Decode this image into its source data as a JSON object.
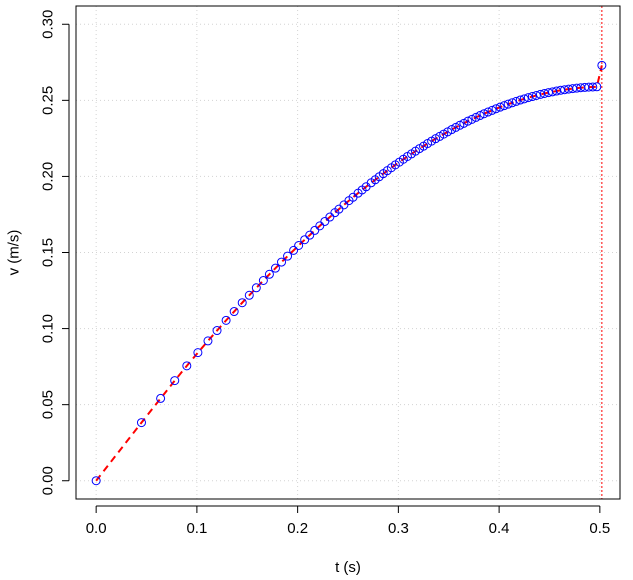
{
  "chart_data": {
    "type": "scatter",
    "xlabel": "t (s)",
    "ylabel": "v (m/s)",
    "xlim": [
      -0.02,
      0.52
    ],
    "ylim": [
      -0.012,
      0.312
    ],
    "x_ticks": [
      0.0,
      0.1,
      0.2,
      0.3,
      0.4,
      0.5
    ],
    "x_tick_labels": [
      "0.0",
      "0.1",
      "0.2",
      "0.3",
      "0.4",
      "0.5"
    ],
    "y_ticks": [
      0.0,
      0.05,
      0.1,
      0.15,
      0.2,
      0.25,
      0.3
    ],
    "y_tick_labels": [
      "0.00",
      "0.05",
      "0.10",
      "0.15",
      "0.20",
      "0.25",
      "0.30"
    ],
    "grid": true,
    "vertical_reference_line_x": 0.502,
    "colors": {
      "points": "#0000ff",
      "fit_line": "#ff0000",
      "reference_line": "#ff0000",
      "grid": "#d3d3d3"
    },
    "series": [
      {
        "marker": "open-circle",
        "x": [
          0.0,
          0.045,
          0.064,
          0.078,
          0.09,
          0.101,
          0.111,
          0.12,
          0.129,
          0.137,
          0.145,
          0.152,
          0.159,
          0.166,
          0.172,
          0.178,
          0.184,
          0.19,
          0.196,
          0.201,
          0.207,
          0.212,
          0.217,
          0.222,
          0.227,
          0.232,
          0.237,
          0.241,
          0.246,
          0.251,
          0.255,
          0.26,
          0.264,
          0.268,
          0.273,
          0.277,
          0.281,
          0.285,
          0.289,
          0.293,
          0.297,
          0.301,
          0.305,
          0.309,
          0.313,
          0.317,
          0.321,
          0.325,
          0.329,
          0.333,
          0.337,
          0.341,
          0.345,
          0.349,
          0.353,
          0.357,
          0.361,
          0.365,
          0.369,
          0.373,
          0.377,
          0.381,
          0.385,
          0.389,
          0.393,
          0.397,
          0.401,
          0.405,
          0.409,
          0.413,
          0.417,
          0.421,
          0.425,
          0.429,
          0.433,
          0.437,
          0.441,
          0.445,
          0.449,
          0.453,
          0.457,
          0.461,
          0.465,
          0.469,
          0.473,
          0.477,
          0.481,
          0.485,
          0.489,
          0.493,
          0.497,
          0.502
        ],
        "y": [
          0.0,
          0.0382,
          0.0541,
          0.0658,
          0.0755,
          0.0842,
          0.0919,
          0.0987,
          0.1054,
          0.1112,
          0.117,
          0.1219,
          0.1268,
          0.1316,
          0.1357,
          0.1397,
          0.1437,
          0.1476,
          0.1514,
          0.1546,
          0.1584,
          0.1614,
          0.1645,
          0.1675,
          0.1704,
          0.1733,
          0.1762,
          0.1785,
          0.1813,
          0.1841,
          0.1863,
          0.189,
          0.1911,
          0.1932,
          0.1958,
          0.1978,
          0.1998,
          0.2018,
          0.2038,
          0.2057,
          0.2076,
          0.2094,
          0.2113,
          0.2131,
          0.2148,
          0.2166,
          0.2183,
          0.2199,
          0.2216,
          0.2232,
          0.2248,
          0.2263,
          0.2278,
          0.2293,
          0.2308,
          0.2322,
          0.2336,
          0.2349,
          0.2363,
          0.2375,
          0.2388,
          0.24,
          0.2412,
          0.2423,
          0.2434,
          0.2445,
          0.2455,
          0.2465,
          0.2475,
          0.2484,
          0.2493,
          0.2502,
          0.251,
          0.2518,
          0.2525,
          0.2532,
          0.2539,
          0.2545,
          0.2551,
          0.2556,
          0.2561,
          0.2566,
          0.257,
          0.2574,
          0.2577,
          0.258,
          0.2583,
          0.2585,
          0.2587,
          0.2588,
          0.2589,
          0.273
        ]
      },
      {
        "line_style": "dashed",
        "x": [
          0.0,
          0.045,
          0.064,
          0.078,
          0.09,
          0.101,
          0.111,
          0.12,
          0.129,
          0.137,
          0.145,
          0.152,
          0.159,
          0.166,
          0.172,
          0.178,
          0.184,
          0.19,
          0.196,
          0.201,
          0.207,
          0.212,
          0.217,
          0.222,
          0.227,
          0.232,
          0.237,
          0.241,
          0.246,
          0.251,
          0.255,
          0.26,
          0.264,
          0.268,
          0.273,
          0.277,
          0.281,
          0.285,
          0.289,
          0.293,
          0.297,
          0.301,
          0.305,
          0.309,
          0.313,
          0.317,
          0.321,
          0.325,
          0.329,
          0.333,
          0.337,
          0.341,
          0.345,
          0.349,
          0.353,
          0.357,
          0.361,
          0.365,
          0.369,
          0.373,
          0.377,
          0.381,
          0.385,
          0.389,
          0.393,
          0.397,
          0.401,
          0.405,
          0.409,
          0.413,
          0.417,
          0.421,
          0.425,
          0.429,
          0.433,
          0.437,
          0.441,
          0.445,
          0.449,
          0.453,
          0.457,
          0.461,
          0.465,
          0.469,
          0.473,
          0.477,
          0.481,
          0.485,
          0.489,
          0.493,
          0.497,
          0.502
        ],
        "y": [
          0.0,
          0.0382,
          0.0541,
          0.0658,
          0.0755,
          0.0842,
          0.0919,
          0.0987,
          0.1054,
          0.1112,
          0.117,
          0.1219,
          0.1268,
          0.1316,
          0.1357,
          0.1397,
          0.1437,
          0.1476,
          0.1514,
          0.1546,
          0.1584,
          0.1614,
          0.1645,
          0.1675,
          0.1704,
          0.1733,
          0.1762,
          0.1785,
          0.1813,
          0.1841,
          0.1863,
          0.189,
          0.1911,
          0.1932,
          0.1958,
          0.1978,
          0.1998,
          0.2018,
          0.2038,
          0.2057,
          0.2076,
          0.2094,
          0.2113,
          0.2131,
          0.2148,
          0.2166,
          0.2183,
          0.2199,
          0.2216,
          0.2232,
          0.2248,
          0.2263,
          0.2278,
          0.2293,
          0.2308,
          0.2322,
          0.2336,
          0.2349,
          0.2363,
          0.2375,
          0.2388,
          0.24,
          0.2412,
          0.2423,
          0.2434,
          0.2445,
          0.2455,
          0.2465,
          0.2475,
          0.2484,
          0.2493,
          0.2502,
          0.251,
          0.2518,
          0.2525,
          0.2532,
          0.2539,
          0.2545,
          0.2551,
          0.2556,
          0.2561,
          0.2566,
          0.257,
          0.2574,
          0.2577,
          0.258,
          0.2583,
          0.2585,
          0.2587,
          0.2588,
          0.2589,
          0.273
        ]
      }
    ]
  }
}
